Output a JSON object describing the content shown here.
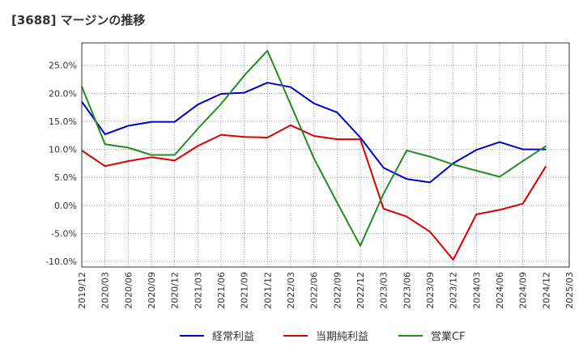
{
  "chart_data": {
    "type": "line",
    "title": "[3688]  マージンの推移",
    "xlabel": "",
    "ylabel": "",
    "x": [
      "2019/12",
      "2020/03",
      "2020/06",
      "2020/09",
      "2020/12",
      "2021/03",
      "2021/06",
      "2021/09",
      "2021/12",
      "2022/03",
      "2022/06",
      "2022/09",
      "2022/12",
      "2023/03",
      "2023/06",
      "2023/09",
      "2023/12",
      "2024/03",
      "2024/06",
      "2024/09",
      "2024/12",
      "2025/03"
    ],
    "y_ticks": [
      "25.0%",
      "20.0%",
      "15.0%",
      "10.0%",
      "5.0%",
      "0.0%",
      "-5.0%",
      "-10.0%"
    ],
    "ylim": [
      -11,
      29
    ],
    "grid": true,
    "legend_position": "bottom",
    "series": [
      {
        "name": "経常利益",
        "color": "#0000cc",
        "values": [
          18.5,
          12.7,
          14.2,
          14.9,
          14.9,
          18.0,
          19.9,
          20.1,
          21.9,
          21.1,
          18.2,
          16.6,
          12.1,
          6.7,
          4.7,
          4.1,
          7.5,
          9.9,
          11.3,
          10.0,
          10.0,
          null
        ]
      },
      {
        "name": "当期純利益",
        "color": "#dd0000",
        "values": [
          9.8,
          7.0,
          7.9,
          8.6,
          8.0,
          10.6,
          12.6,
          12.2,
          12.1,
          14.3,
          12.4,
          11.8,
          11.8,
          -0.6,
          -2.0,
          -4.7,
          -9.7,
          -1.6,
          -0.8,
          0.3,
          7.0,
          null
        ]
      },
      {
        "name": "営業CF",
        "color": "#228b22",
        "values": [
          21.2,
          10.9,
          10.3,
          9.0,
          9.0,
          13.7,
          18.1,
          23.2,
          27.6,
          18.0,
          8.4,
          0.5,
          -7.2,
          2.1,
          9.8,
          8.7,
          7.3,
          6.2,
          5.1,
          7.9,
          10.6,
          null
        ]
      }
    ]
  }
}
